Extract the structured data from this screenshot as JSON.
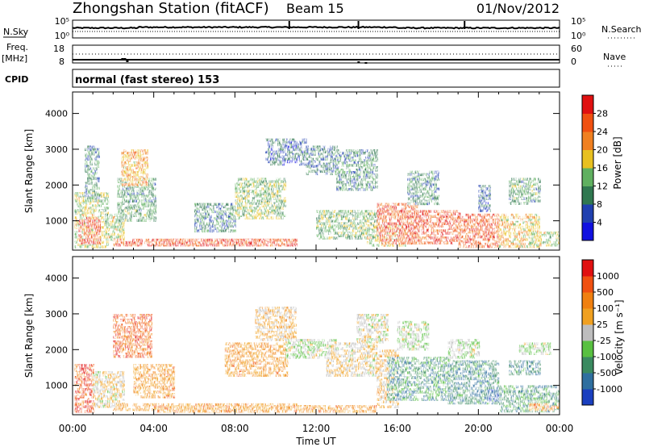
{
  "header": {
    "station": "Zhongshan Station (fitACF)",
    "beam": "Beam 15",
    "date": "01/Nov/2012"
  },
  "noise_panel": {
    "left_label": "N.Sky",
    "left_ticks": [
      "10^5",
      "10^0"
    ],
    "right_ticks": [
      "10^5",
      "10^0"
    ],
    "right_label": "N.Search"
  },
  "freq_panel": {
    "left_label_1": "Freq.",
    "left_label_2": "[MHz]",
    "left_ticks": [
      "18",
      "8"
    ],
    "right_ticks": [
      "60",
      "0"
    ],
    "right_label": "Nave"
  },
  "cpid_panel": {
    "label": "CPID",
    "text": "normal (fast stereo) 153"
  },
  "chart_data": [
    {
      "type": "heatmap",
      "quantity": "power",
      "ylabel": "Slant Range [km]",
      "ylim": [
        180,
        4600
      ],
      "yticks": [
        1000,
        2000,
        3000,
        4000
      ],
      "xlim": [
        0,
        24
      ],
      "colorbar": {
        "label": "Power [dB]",
        "ticks": [
          "4",
          "8",
          "12",
          "16",
          "20",
          "24",
          "28"
        ],
        "colors": [
          "#1010e0",
          "#2040b0",
          "#307850",
          "#60b060",
          "#e8c020",
          "#f08020",
          "#f05010",
          "#e01010"
        ]
      },
      "patches": [
        [
          0.1,
          300,
          1.7,
          1800,
          0.5
        ],
        [
          0.3,
          400,
          1.3,
          1100,
          0.9
        ],
        [
          0.6,
          1600,
          1.3,
          3100,
          0.3
        ],
        [
          1.6,
          500,
          2.5,
          1200,
          0.5
        ],
        [
          2.0,
          300,
          11.0,
          500,
          0.85
        ],
        [
          2.2,
          1000,
          4.0,
          2200,
          0.35
        ],
        [
          2.4,
          2000,
          3.6,
          3000,
          0.65
        ],
        [
          4.0,
          350,
          11.0,
          500,
          0.9
        ],
        [
          6.0,
          700,
          8.0,
          1500,
          0.3
        ],
        [
          8.0,
          1100,
          10.5,
          2200,
          0.45
        ],
        [
          9.5,
          2600,
          11.5,
          3300,
          0.2
        ],
        [
          11.5,
          2300,
          13.0,
          3100,
          0.25
        ],
        [
          12.0,
          500,
          15.0,
          1300,
          0.4
        ],
        [
          13.0,
          1900,
          15.0,
          3000,
          0.3
        ],
        [
          14.5,
          300,
          16.3,
          900,
          0.5
        ],
        [
          15.0,
          400,
          17.0,
          1500,
          0.85
        ],
        [
          16.0,
          400,
          19.0,
          1300,
          0.9
        ],
        [
          16.5,
          1500,
          18.0,
          2400,
          0.3
        ],
        [
          19.0,
          300,
          21.0,
          1200,
          0.85
        ],
        [
          20.0,
          1300,
          20.5,
          2000,
          0.2
        ],
        [
          21.0,
          300,
          23.0,
          1200,
          0.6
        ],
        [
          21.5,
          1500,
          23.0,
          2200,
          0.35
        ],
        [
          22.5,
          300,
          24.0,
          700,
          0.5
        ]
      ]
    },
    {
      "type": "heatmap",
      "quantity": "velocity",
      "ylabel": "Slant Range [km]",
      "xlabel": "Time UT",
      "ylim": [
        180,
        4600
      ],
      "yticks": [
        1000,
        2000,
        3000,
        4000
      ],
      "xlim": [
        0,
        24
      ],
      "xticks": [
        "00:00",
        "04:00",
        "08:00",
        "12:00",
        "16:00",
        "20:00",
        "00:00"
      ],
      "colorbar": {
        "label": "Velocity [m s^-1]",
        "ticks": [
          "1000",
          "500",
          "100",
          "25",
          "-25",
          "-100",
          "-500",
          "-1000"
        ],
        "colors": [
          "#1a3fbf",
          "#2f6f9f",
          "#3a8a60",
          "#58c040",
          "#bdbdbd",
          "#f0a020",
          "#f08010",
          "#f05010",
          "#e01010"
        ]
      },
      "patches": [
        [
          0.1,
          300,
          1.0,
          1600,
          0.9
        ],
        [
          1.0,
          400,
          2.5,
          1400,
          0.55
        ],
        [
          2.0,
          300,
          11.0,
          500,
          0.7
        ],
        [
          2.0,
          1800,
          3.8,
          3000,
          0.85
        ],
        [
          3.0,
          700,
          5.0,
          1600,
          0.7
        ],
        [
          4.0,
          300,
          15.0,
          450,
          0.7
        ],
        [
          7.5,
          1300,
          10.5,
          2200,
          0.7
        ],
        [
          9.0,
          2300,
          11.0,
          3200,
          0.6
        ],
        [
          10.5,
          1800,
          13.0,
          2300,
          0.45
        ],
        [
          12.5,
          1300,
          15.0,
          2200,
          0.55
        ],
        [
          14.0,
          2200,
          15.5,
          3000,
          0.5
        ],
        [
          15.0,
          400,
          16.0,
          2000,
          0.6
        ],
        [
          15.5,
          600,
          18.5,
          1800,
          0.25
        ],
        [
          16.0,
          2000,
          17.5,
          2800,
          0.45
        ],
        [
          18.5,
          500,
          21.0,
          1700,
          0.22
        ],
        [
          18.5,
          1800,
          20.0,
          2300,
          0.45
        ],
        [
          20.5,
          600,
          21.0,
          900,
          0.05
        ],
        [
          21.0,
          300,
          24.0,
          1000,
          0.25
        ],
        [
          22.0,
          1900,
          23.5,
          2200,
          0.45
        ],
        [
          21.5,
          1300,
          23.0,
          1700,
          0.2
        ],
        [
          22.5,
          300,
          24.0,
          500,
          0.7
        ]
      ]
    }
  ]
}
